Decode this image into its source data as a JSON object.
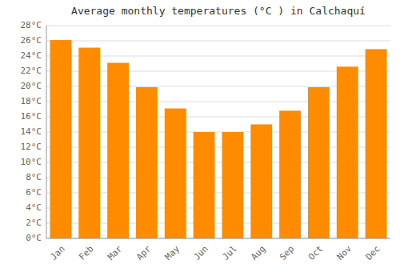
{
  "chart_data": {
    "type": "bar",
    "title": "Average monthly temperatures (°C ) in Calchaquí",
    "categories": [
      "Jan",
      "Feb",
      "Mar",
      "Apr",
      "May",
      "Jun",
      "Jul",
      "Aug",
      "Sep",
      "Oct",
      "Nov",
      "Dec"
    ],
    "values": [
      26.1,
      25.1,
      23.1,
      19.9,
      17.1,
      14.0,
      14.0,
      15.0,
      16.8,
      19.9,
      22.6,
      24.9
    ],
    "color": "#FF8C00",
    "ylim": [
      0,
      28
    ],
    "yticks": [
      {
        "value": 0,
        "label": "0°C"
      },
      {
        "value": 2,
        "label": "2°C"
      },
      {
        "value": 4,
        "label": "4°C"
      },
      {
        "value": 6,
        "label": "6°C"
      },
      {
        "value": 8,
        "label": "8°C"
      },
      {
        "value": 10,
        "label": "10°C"
      },
      {
        "value": 12,
        "label": "12°C"
      },
      {
        "value": 14,
        "label": "14°C"
      },
      {
        "value": 16,
        "label": "16°C"
      },
      {
        "value": 18,
        "label": "18°C"
      },
      {
        "value": 20,
        "label": "20°C"
      },
      {
        "value": 22,
        "label": "22°C"
      },
      {
        "value": 24,
        "label": "24°C"
      },
      {
        "value": 26,
        "label": "26°C"
      },
      {
        "value": 28,
        "label": "28°C"
      }
    ],
    "grid": true
  }
}
